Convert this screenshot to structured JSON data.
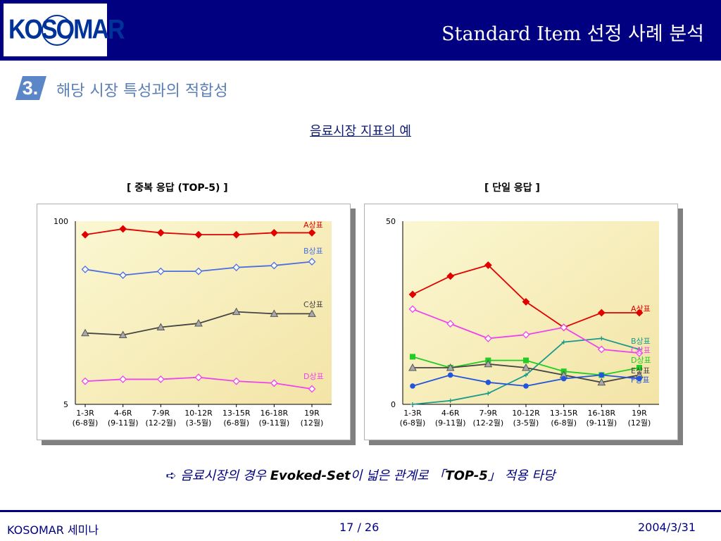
{
  "header": {
    "logo_text": "KOSOMAR",
    "title": "Standard Item 선정 사례 분석"
  },
  "section": {
    "number": "3.",
    "title": "해당 시장 특성과의 적합성"
  },
  "subtitle": "음료시장 지표의 예",
  "chart_data": [
    {
      "type": "line",
      "title": "[ 중복 응답 (TOP-5) ]",
      "categories": [
        "1-3R\n(6-8월)",
        "4-6R\n(9-11월)",
        "7-9R\n(12-2월)",
        "10-12R\n(3-5월)",
        "13-15R\n(6-8월)",
        "16-18R\n(9-11월)",
        "19R\n(12월)"
      ],
      "ylim": [
        5,
        100
      ],
      "yticks": [
        "100",
        "5"
      ],
      "grid": false,
      "series": [
        {
          "name": "A상표",
          "color": "#e00000",
          "marker": "diamond",
          "values": [
            93,
            96,
            94,
            93,
            93,
            94,
            94
          ]
        },
        {
          "name": "B상표",
          "color": "#4a6fe0",
          "marker": "diamond-open",
          "values": [
            75,
            72,
            74,
            74,
            76,
            77,
            79
          ]
        },
        {
          "name": "C상표",
          "color": "#444444",
          "marker": "triangle",
          "values": [
            42,
            41,
            45,
            47,
            53,
            52,
            52
          ]
        },
        {
          "name": "D상표",
          "color": "#ee44ee",
          "marker": "diamond-open",
          "values": [
            17,
            18,
            18,
            19,
            17,
            16,
            13
          ]
        }
      ]
    },
    {
      "type": "line",
      "title": "[ 단일 응답 ]",
      "categories": [
        "1-3R\n(6-8월)",
        "4-6R\n(9-11월)",
        "7-9R\n(12-2월)",
        "10-12R\n(3-5월)",
        "13-15R\n(6-8월)",
        "16-18R\n(9-11월)",
        "19R\n(12월)"
      ],
      "ylim": [
        0,
        50
      ],
      "yticks": [
        "50",
        "0"
      ],
      "grid": false,
      "series": [
        {
          "name": "A상표",
          "color": "#e00000",
          "marker": "diamond",
          "values": [
            30,
            35,
            38,
            28,
            21,
            25,
            25
          ]
        },
        {
          "name": "B상표",
          "color": "#1a9a8a",
          "marker": "plus",
          "values": [
            0,
            1,
            3,
            8,
            17,
            18,
            15
          ]
        },
        {
          "name": "C상표",
          "color": "#ee44ee",
          "marker": "diamond-open",
          "values": [
            26,
            22,
            18,
            19,
            21,
            15,
            14
          ]
        },
        {
          "name": "D상표",
          "color": "#22cc22",
          "marker": "square",
          "values": [
            13,
            10,
            12,
            12,
            9,
            8,
            10
          ]
        },
        {
          "name": "E상표",
          "color": "#444444",
          "marker": "triangle",
          "values": [
            10,
            10,
            11,
            10,
            8,
            6,
            8
          ]
        },
        {
          "name": "F상표",
          "color": "#2255dd",
          "marker": "circle",
          "values": [
            5,
            8,
            6,
            5,
            7,
            8,
            7
          ]
        }
      ]
    }
  ],
  "conclusion": {
    "arrow": "➪",
    "pre": " 음료시장의 경우 ",
    "bold1": "Evoked-Set",
    "mid": "이 넓은 관계로 「",
    "bold2": "TOP-5",
    "post": "」 적용 타당"
  },
  "footer": {
    "left": "KOSOMAR 세미나",
    "page": "17 / 26",
    "date": "2004/3/31"
  }
}
